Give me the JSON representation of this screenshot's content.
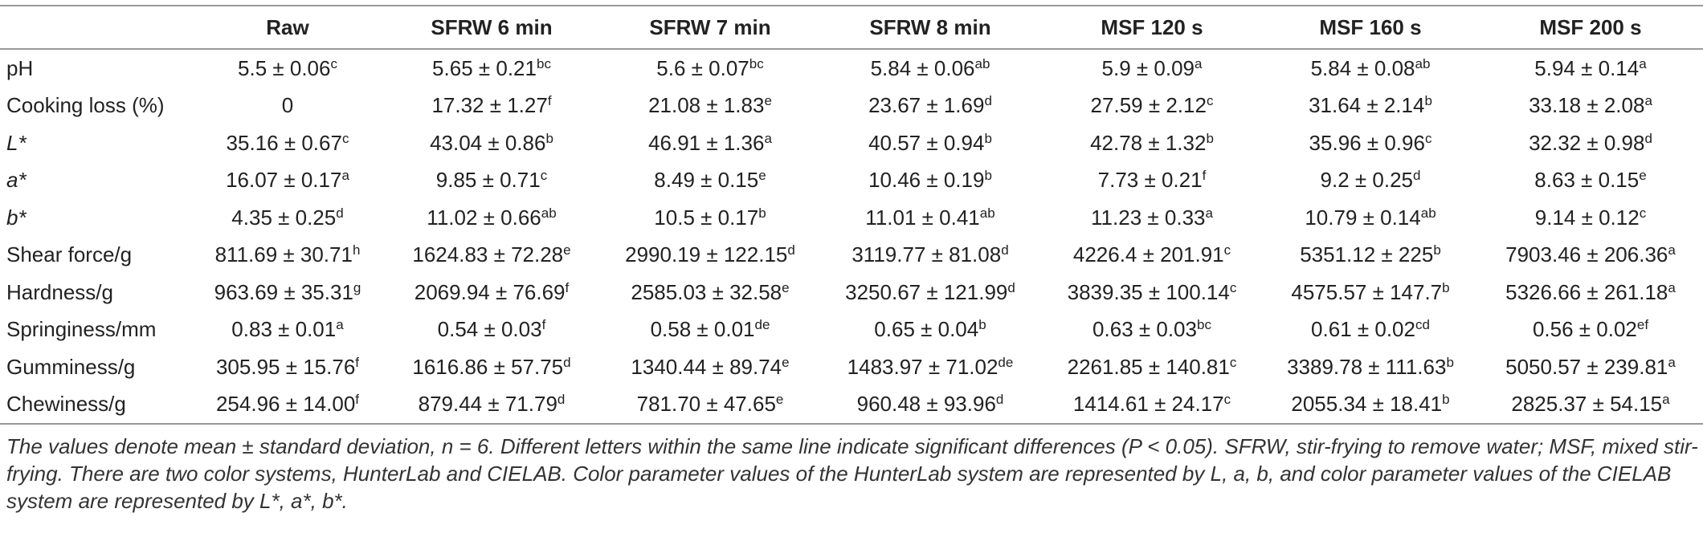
{
  "table": {
    "header": [
      "Raw",
      "SFRW 6 min",
      "SFRW 7 min",
      "SFRW 8 min",
      "MSF 120 s",
      "MSF 160 s",
      "MSF 200 s"
    ],
    "rows": [
      {
        "label": "pH",
        "cells": [
          {
            "text": "5.5 ± 0.06",
            "sup": "c"
          },
          {
            "text": "5.65 ± 0.21",
            "sup": "bc"
          },
          {
            "text": "5.6 ± 0.07",
            "sup": "bc"
          },
          {
            "text": "5.84 ± 0.06",
            "sup": "ab"
          },
          {
            "text": "5.9 ± 0.09",
            "sup": "a"
          },
          {
            "text": "5.84 ± 0.08",
            "sup": "ab"
          },
          {
            "text": "5.94 ± 0.14",
            "sup": "a"
          }
        ]
      },
      {
        "label": "Cooking loss (%)",
        "cells": [
          {
            "text": "0"
          },
          {
            "text": "17.32 ± 1.27",
            "sup": "f"
          },
          {
            "text": "21.08 ± 1.83",
            "sup": "e"
          },
          {
            "text": "23.67 ± 1.69",
            "sup": "d"
          },
          {
            "text": "27.59 ± 2.12",
            "sup": "c"
          },
          {
            "text": "31.64 ± 2.14",
            "sup": "b"
          },
          {
            "text": "33.18 ± 2.08",
            "sup": "a"
          }
        ]
      },
      {
        "label": "L*",
        "italic": true,
        "cells": [
          {
            "text": "35.16 ± 0.67",
            "sup": "c"
          },
          {
            "text": "43.04 ± 0.86",
            "sup": "b"
          },
          {
            "text": "46.91 ± 1.36",
            "sup": "a"
          },
          {
            "text": "40.57 ± 0.94",
            "sup": "b"
          },
          {
            "text": "42.78 ± 1.32",
            "sup": "b"
          },
          {
            "text": "35.96 ± 0.96",
            "sup": "c"
          },
          {
            "text": "32.32 ± 0.98",
            "sup": "d"
          }
        ]
      },
      {
        "label": "a*",
        "italic": true,
        "cells": [
          {
            "text": "16.07 ± 0.17",
            "sup": "a"
          },
          {
            "text": "9.85 ± 0.71",
            "sup": "c"
          },
          {
            "text": "8.49 ± 0.15",
            "sup": "e"
          },
          {
            "text": "10.46 ± 0.19",
            "sup": "b"
          },
          {
            "text": "7.73 ± 0.21",
            "sup": "f"
          },
          {
            "text": "9.2 ± 0.25",
            "sup": "d"
          },
          {
            "text": "8.63 ± 0.15",
            "sup": "e"
          }
        ]
      },
      {
        "label": "b*",
        "italic": true,
        "cells": [
          {
            "text": "4.35 ± 0.25",
            "sup": "d"
          },
          {
            "text": "11.02 ± 0.66",
            "sup": "ab"
          },
          {
            "text": "10.5 ± 0.17",
            "sup": "b"
          },
          {
            "text": "11.01 ± 0.41",
            "sup": "ab"
          },
          {
            "text": "11.23 ± 0.33",
            "sup": "a"
          },
          {
            "text": "10.79 ± 0.14",
            "sup": "ab"
          },
          {
            "text": "9.14 ± 0.12",
            "sup": "c"
          }
        ]
      },
      {
        "label": "Shear force/g",
        "cells": [
          {
            "text": "811.69 ± 30.71",
            "sup": "h"
          },
          {
            "text": "1624.83 ± 72.28",
            "sup": "e"
          },
          {
            "text": "2990.19 ± 122.15",
            "sup": "d"
          },
          {
            "text": "3119.77 ± 81.08",
            "sup": "d"
          },
          {
            "text": "4226.4 ± 201.91",
            "sup": "c"
          },
          {
            "text": "5351.12 ± 225",
            "sup": "b"
          },
          {
            "text": "7903.46 ± 206.36",
            "sup": "a"
          }
        ]
      },
      {
        "label": "Hardness/g",
        "cells": [
          {
            "text": "963.69 ± 35.31",
            "sup": "g"
          },
          {
            "text": "2069.94 ± 76.69",
            "sup": "f"
          },
          {
            "text": "2585.03 ± 32.58",
            "sup": "e"
          },
          {
            "text": "3250.67 ± 121.99",
            "sup": "d"
          },
          {
            "text": "3839.35 ± 100.14",
            "sup": "c"
          },
          {
            "text": "4575.57 ± 147.7",
            "sup": "b"
          },
          {
            "text": "5326.66 ± 261.18",
            "sup": "a"
          }
        ]
      },
      {
        "label": "Springiness/mm",
        "cells": [
          {
            "text": "0.83 ± 0.01",
            "sup": "a"
          },
          {
            "text": "0.54 ± 0.03",
            "sup": "f"
          },
          {
            "text": "0.58 ± 0.01",
            "sup": "de"
          },
          {
            "text": "0.65 ± 0.04",
            "sup": "b"
          },
          {
            "text": "0.63 ± 0.03",
            "sup": "bc"
          },
          {
            "text": "0.61 ± 0.02",
            "sup": "cd"
          },
          {
            "text": "0.56 ± 0.02",
            "sup": "ef"
          }
        ]
      },
      {
        "label": "Gumminess/g",
        "cells": [
          {
            "text": "305.95 ± 15.76",
            "sup": "f"
          },
          {
            "text": "1616.86 ± 57.75",
            "sup": "d"
          },
          {
            "text": "1340.44 ± 89.74",
            "sup": "e"
          },
          {
            "text": "1483.97 ± 71.02",
            "sup": "de"
          },
          {
            "text": "2261.85 ± 140.81",
            "sup": "c"
          },
          {
            "text": "3389.78 ± 111.63",
            "sup": "b"
          },
          {
            "text": "5050.57 ± 239.81",
            "sup": "a"
          }
        ]
      },
      {
        "label": "Chewiness/g",
        "cells": [
          {
            "text": "254.96 ± 14.00",
            "sup": "f"
          },
          {
            "text": "879.44 ± 71.79",
            "sup": "d"
          },
          {
            "text": "781.70 ± 47.65",
            "sup": "e"
          },
          {
            "text": "960.48 ± 93.96",
            "sup": "d"
          },
          {
            "text": "1414.61 ± 24.17",
            "sup": "c"
          },
          {
            "text": "2055.34 ± 18.41",
            "sup": "b"
          },
          {
            "text": "2825.37 ± 54.15",
            "sup": "a"
          }
        ]
      }
    ]
  },
  "footnote": "The values denote mean ± standard deviation, n = 6. Different letters within the same line indicate significant differences (P < 0.05). SFRW, stir-frying to remove water; MSF, mixed stir-frying. There are two color systems, HunterLab and CIELAB. Color parameter values of the HunterLab system are represented by L, a, b, and color parameter values of the CIELAB system are represented by L*, a*, b*."
}
